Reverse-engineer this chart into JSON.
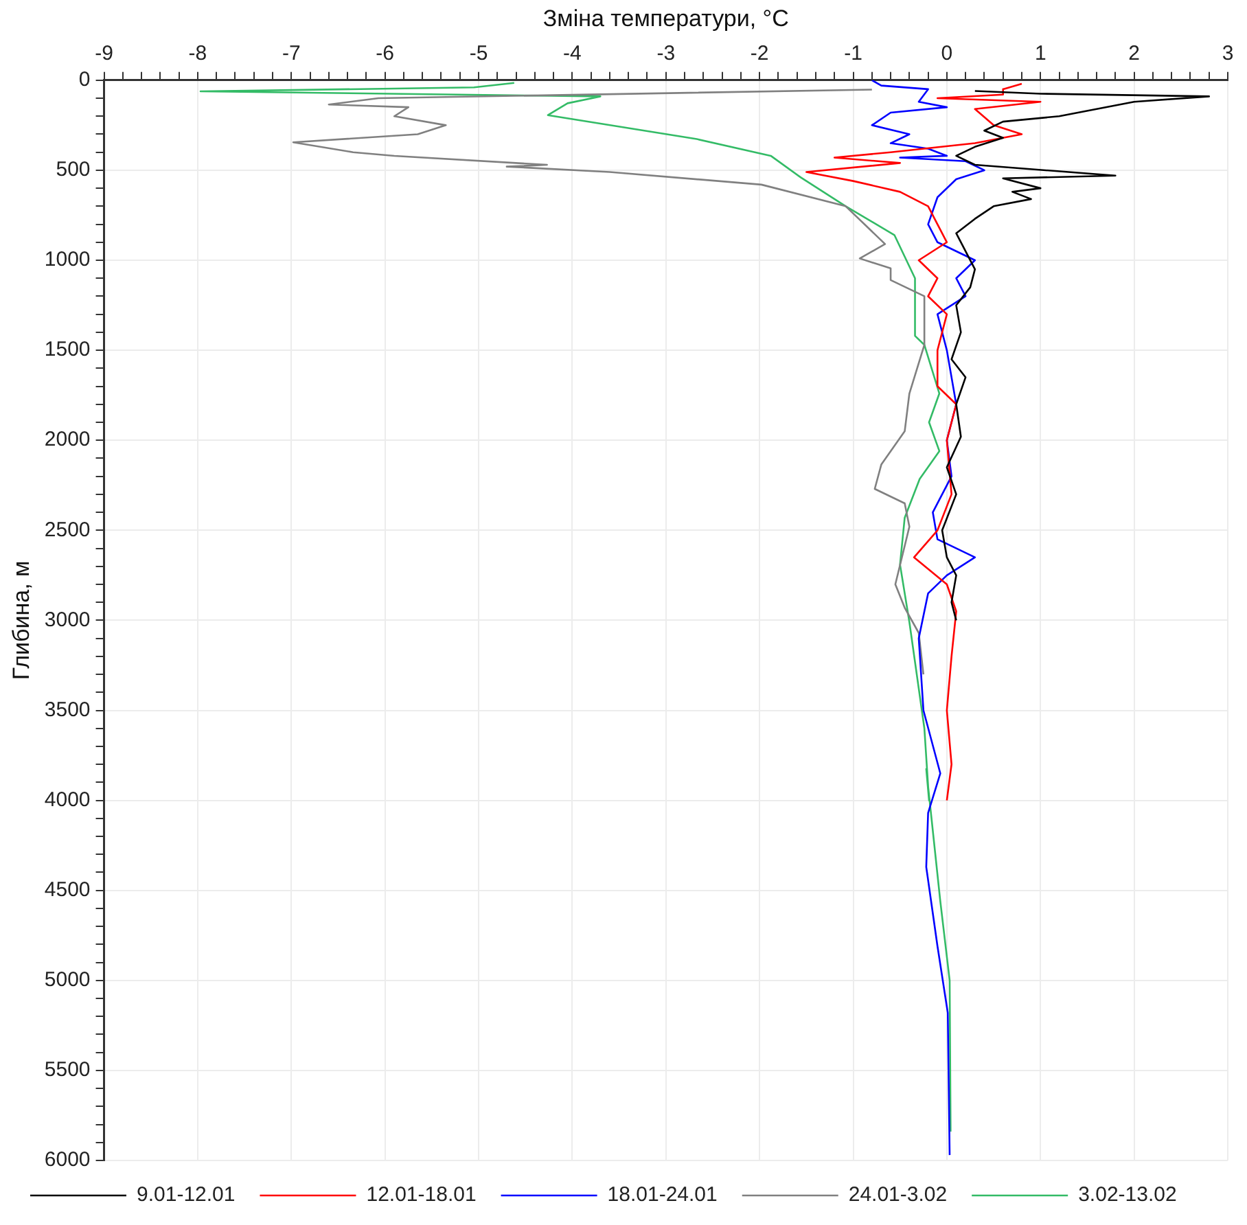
{
  "chart_data": {
    "type": "line",
    "xlabel": "Зміна температури, °C",
    "ylabel": "Глибина, м",
    "xlim": [
      -9,
      3
    ],
    "ylim": [
      6000,
      0
    ],
    "xticks": [
      -9,
      {
        "value": -8.8,
        "label": null
      },
      {
        "value": -8.6,
        "label": null
      },
      {
        "value": -8.4,
        "label": null
      },
      {
        "value": -8.2,
        "label": null
      },
      -8,
      {
        "value": -7.8,
        "label": null
      },
      {
        "value": -7.6,
        "label": null
      },
      {
        "value": -7.4,
        "label": null
      },
      {
        "value": -7.2,
        "label": null
      },
      -7,
      {
        "value": -6.8,
        "label": null
      },
      {
        "value": -6.6,
        "label": null
      },
      {
        "value": -6.4,
        "label": null
      },
      {
        "value": -6.2,
        "label": null
      },
      -6,
      {
        "value": -5.8,
        "label": null
      },
      {
        "value": -5.6,
        "label": null
      },
      {
        "value": -5.4,
        "label": null
      },
      {
        "value": -5.2,
        "label": null
      },
      -5,
      {
        "value": -4.8,
        "label": null
      },
      {
        "value": -4.6,
        "label": null
      },
      {
        "value": -4.4,
        "label": null
      },
      {
        "value": -4.2,
        "label": null
      },
      -4,
      {
        "value": -3.8,
        "label": null
      },
      {
        "value": -3.6,
        "label": null
      },
      {
        "value": -3.4,
        "label": null
      },
      {
        "value": -3.2,
        "label": null
      },
      -3,
      {
        "value": -2.8,
        "label": null
      },
      {
        "value": -2.6,
        "label": null
      },
      {
        "value": -2.4,
        "label": null
      },
      {
        "value": -2.2,
        "label": null
      },
      -2,
      {
        "value": -1.8,
        "label": null
      },
      {
        "value": -1.6,
        "label": null
      },
      {
        "value": -1.4,
        "label": null
      },
      {
        "value": -1.2,
        "label": null
      },
      -1,
      {
        "value": -0.8,
        "label": null
      },
      {
        "value": -0.6,
        "label": null
      },
      {
        "value": -0.4,
        "label": null
      },
      {
        "value": -0.2,
        "label": null
      },
      0,
      {
        "value": 0.2,
        "label": null
      },
      {
        "value": 0.4,
        "label": null
      },
      {
        "value": 0.6,
        "label": null
      },
      {
        "value": 0.8,
        "label": null
      },
      1,
      {
        "value": 1.2,
        "label": null
      },
      {
        "value": 1.4,
        "label": null
      },
      {
        "value": 1.6,
        "label": null
      },
      {
        "value": 1.8,
        "label": null
      },
      2,
      {
        "value": 2.2,
        "label": null
      },
      {
        "value": 2.4,
        "label": null
      },
      {
        "value": 2.6,
        "label": null
      },
      {
        "value": 2.8,
        "label": null
      },
      3
    ],
    "yticks": [
      0,
      {
        "value": 100,
        "label": null
      },
      {
        "value": 200,
        "label": null
      },
      {
        "value": 300,
        "label": null
      },
      {
        "value": 400,
        "label": null
      },
      500,
      {
        "value": 600,
        "label": null
      },
      {
        "value": 700,
        "label": null
      },
      {
        "value": 800,
        "label": null
      },
      {
        "value": 900,
        "label": null
      },
      1000,
      {
        "value": 1100,
        "label": null
      },
      {
        "value": 1200,
        "label": null
      },
      {
        "value": 1300,
        "label": null
      },
      {
        "value": 1400,
        "label": null
      },
      1500,
      {
        "value": 1600,
        "label": null
      },
      {
        "value": 1700,
        "label": null
      },
      {
        "value": 1800,
        "label": null
      },
      {
        "value": 1900,
        "label": null
      },
      2000,
      {
        "value": 2100,
        "label": null
      },
      {
        "value": 2200,
        "label": null
      },
      {
        "value": 2300,
        "label": null
      },
      {
        "value": 2400,
        "label": null
      },
      2500,
      {
        "value": 2600,
        "label": null
      },
      {
        "value": 2700,
        "label": null
      },
      {
        "value": 2800,
        "label": null
      },
      {
        "value": 2900,
        "label": null
      },
      3000,
      {
        "value": 3100,
        "label": null
      },
      {
        "value": 3200,
        "label": null
      },
      {
        "value": 3300,
        "label": null
      },
      {
        "value": 3400,
        "label": null
      },
      3500,
      {
        "value": 3600,
        "label": null
      },
      {
        "value": 3700,
        "label": null
      },
      {
        "value": 3800,
        "label": null
      },
      {
        "value": 3900,
        "label": null
      },
      4000,
      {
        "value": 4100,
        "label": null
      },
      {
        "value": 4200,
        "label": null
      },
      {
        "value": 4300,
        "label": null
      },
      {
        "value": 4400,
        "label": null
      },
      4500,
      {
        "value": 4600,
        "label": null
      },
      {
        "value": 4700,
        "label": null
      },
      {
        "value": 4800,
        "label": null
      },
      {
        "value": 4900,
        "label": null
      },
      5000,
      {
        "value": 5100,
        "label": null
      },
      {
        "value": 5200,
        "label": null
      },
      {
        "value": 5300,
        "label": null
      },
      {
        "value": 5400,
        "label": null
      },
      5500,
      {
        "value": 5600,
        "label": null
      },
      {
        "value": 5700,
        "label": null
      },
      {
        "value": 5800,
        "label": null
      },
      {
        "value": 5900,
        "label": null
      },
      6000
    ],
    "grid": true,
    "legend": "bottom left",
    "marker": "none",
    "line_style": "solid",
    "series": [
      {
        "name": "9.01-12.01",
        "color": "#000000",
        "x": [
          0.3,
          1.0,
          2.8,
          2.0,
          1.6,
          1.2,
          0.6,
          0.4,
          0.6,
          0.3,
          0.1,
          0.3,
          1.8,
          0.6,
          1.0,
          0.7,
          0.9,
          0.5,
          0.3,
          0.1,
          0.2,
          0.3,
          0.25,
          0.1,
          0.15,
          0.05,
          0.2,
          0.1,
          0.15,
          0.0,
          0.1,
          -0.05,
          0.0,
          0.1,
          0.05,
          0.1
        ],
        "values": [
          60,
          75,
          90,
          120,
          160,
          200,
          230,
          280,
          320,
          370,
          420,
          470,
          530,
          545,
          600,
          620,
          660,
          700,
          770,
          850,
          950,
          1050,
          1150,
          1250,
          1400,
          1550,
          1650,
          1800,
          1980,
          2150,
          2300,
          2500,
          2650,
          2750,
          2900,
          3000
        ]
      },
      {
        "name": "12.01-18.01",
        "color": "#ff0000",
        "x": [
          0.8,
          0.6,
          0.6,
          -0.1,
          1.0,
          0.3,
          0.5,
          0.8,
          0.3,
          -0.6,
          -1.2,
          -0.5,
          -1.5,
          -1.0,
          -0.5,
          -0.2,
          -0.1,
          0.0,
          -0.3,
          -0.1,
          -0.2,
          0.0,
          -0.1,
          -0.1,
          0.1,
          0.0,
          0.05,
          -0.1,
          -0.35,
          0.0,
          0.1,
          0.05,
          0.0,
          0.05,
          0.0
        ],
        "values": [
          20,
          50,
          80,
          100,
          120,
          160,
          250,
          300,
          350,
          400,
          430,
          460,
          510,
          560,
          620,
          700,
          800,
          900,
          1000,
          1100,
          1200,
          1300,
          1500,
          1700,
          1800,
          2000,
          2300,
          2500,
          2650,
          2800,
          2950,
          3200,
          3500,
          3800,
          4000
        ]
      },
      {
        "name": "18.01-24.01",
        "color": "#0000ff",
        "x": [
          -0.8,
          -0.7,
          -0.2,
          -0.3,
          0.0,
          -0.6,
          -0.8,
          -0.4,
          -0.6,
          -0.2,
          0.0,
          -0.5,
          0.2,
          0.4,
          0.1,
          -0.1,
          -0.2,
          -0.1,
          0.3,
          0.1,
          0.2,
          -0.1,
          0.0,
          0.1,
          0.0,
          0.05,
          -0.15,
          -0.1,
          0.3,
          0.0,
          -0.2,
          -0.3,
          -0.25,
          -0.07,
          -0.2,
          -0.22,
          -0.1,
          0.01,
          0.03
        ],
        "values": [
          0,
          30,
          50,
          120,
          150,
          180,
          250,
          300,
          350,
          380,
          420,
          430,
          450,
          500,
          550,
          650,
          800,
          900,
          1000,
          1100,
          1200,
          1300,
          1500,
          1800,
          2000,
          2200,
          2400,
          2550,
          2650,
          2750,
          2850,
          3100,
          3500,
          3850,
          4070,
          4370,
          4810,
          5180,
          5970
        ]
      },
      {
        "name": "24.01-3.02",
        "color": "#808080",
        "x": [
          -0.8,
          -6.07,
          -6.6,
          -5.75,
          -5.9,
          -5.35,
          -5.65,
          -6.98,
          -6.34,
          -5.9,
          -4.27,
          -4.7,
          -3.6,
          -1.98,
          -1.08,
          -0.66,
          -0.93,
          -0.6,
          -0.6,
          -0.24,
          -0.24,
          -0.4,
          -0.45,
          -0.7,
          -0.77,
          -0.45,
          -0.4,
          -0.55,
          -0.45,
          -0.3,
          -0.25
        ],
        "values": [
          52,
          100,
          135,
          150,
          200,
          250,
          300,
          345,
          400,
          420,
          470,
          480,
          510,
          580,
          700,
          910,
          990,
          1045,
          1110,
          1200,
          1470,
          1740,
          1950,
          2135,
          2270,
          2350,
          2480,
          2800,
          2930,
          3070,
          3300
        ]
      },
      {
        "name": "3.02-13.02",
        "color": "#33bb66",
        "x": [
          -4.62,
          -5.05,
          -7.97,
          -3.7,
          -4.05,
          -4.26,
          -2.67,
          -1.88,
          -1.56,
          -1.08,
          -0.56,
          -0.34,
          -0.34,
          -0.24,
          -0.08,
          -0.19,
          -0.08,
          -0.29,
          -0.45,
          -0.5,
          -0.4,
          -0.24,
          -0.19,
          -0.22,
          -0.07,
          0.03,
          0.04
        ],
        "values": [
          15,
          40,
          62,
          90,
          128,
          194,
          327,
          420,
          540,
          700,
          860,
          1100,
          1420,
          1470,
          1740,
          1900,
          2060,
          2215,
          2430,
          2690,
          3010,
          3600,
          4000,
          3825,
          4560,
          5000,
          5840
        ]
      }
    ]
  }
}
